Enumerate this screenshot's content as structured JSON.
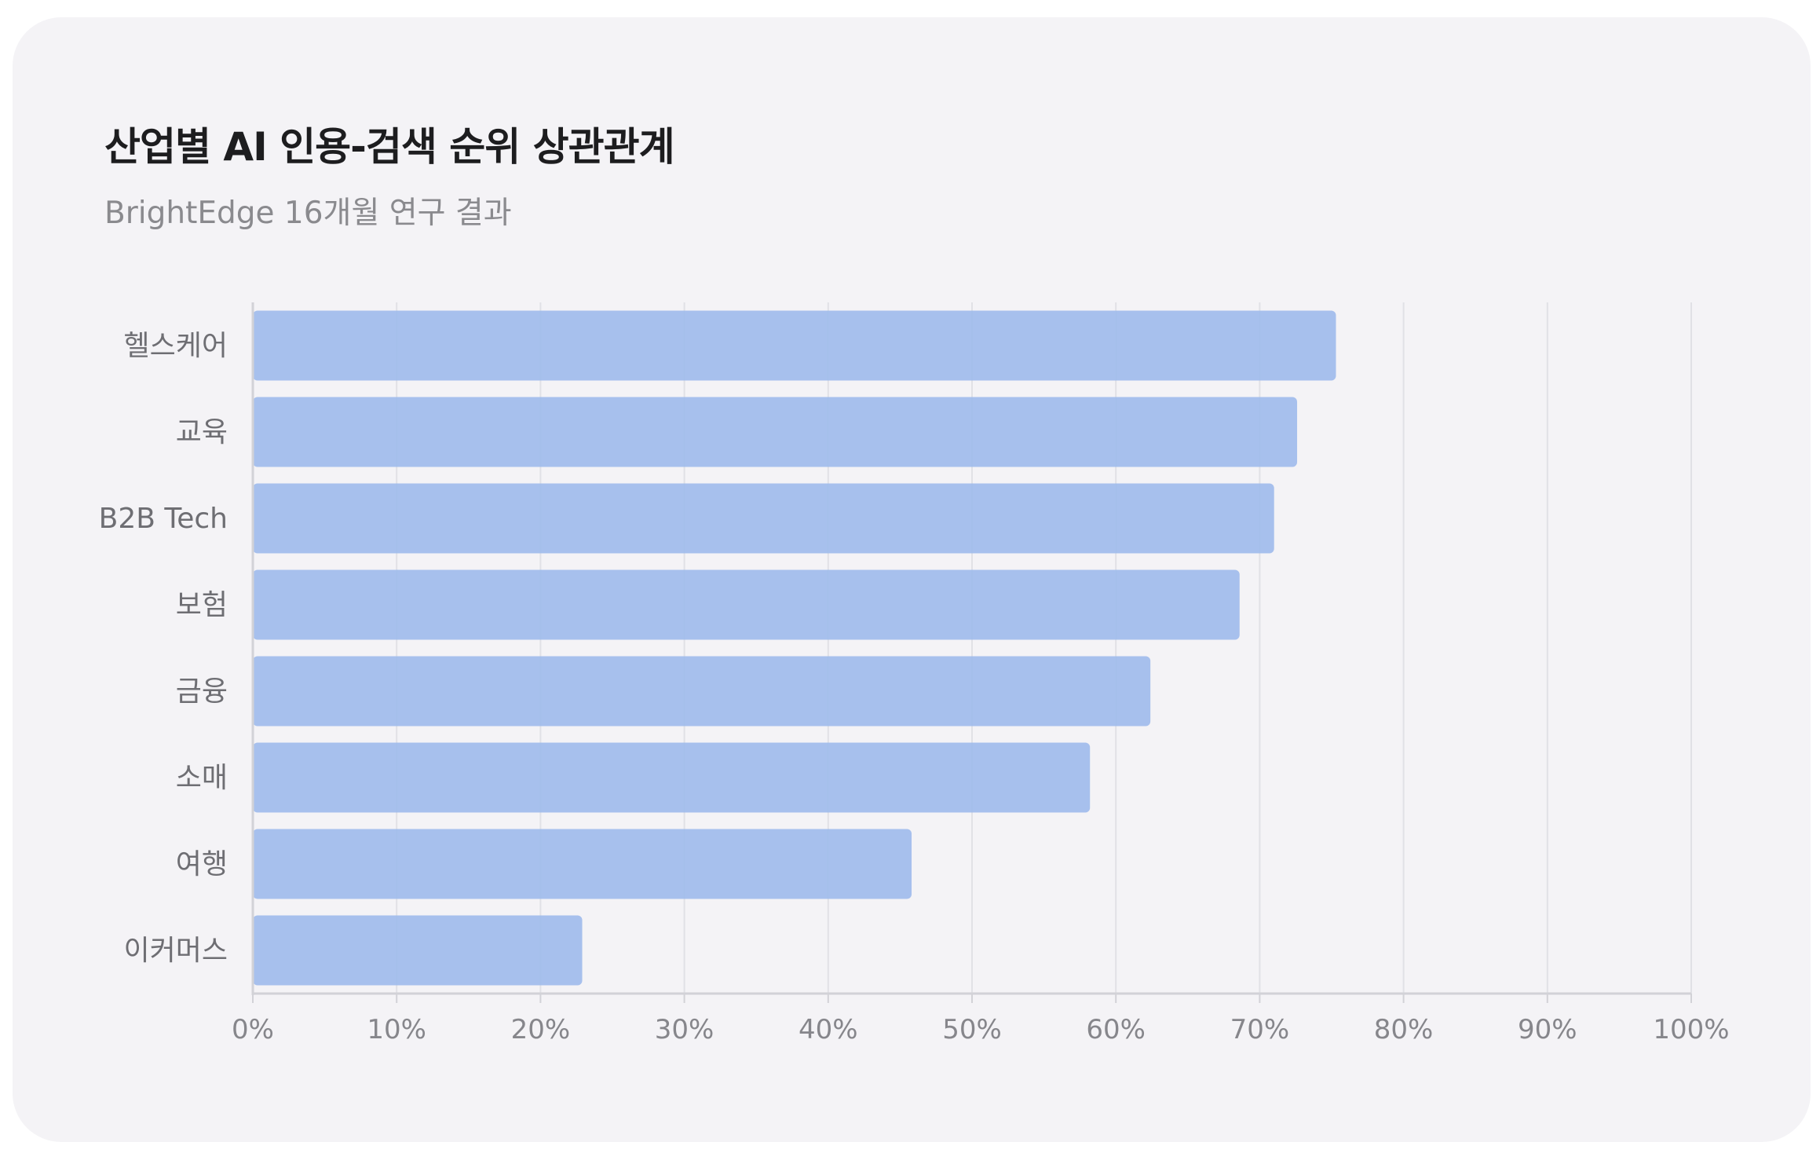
{
  "chart_data": {
    "type": "bar",
    "orientation": "horizontal",
    "title": "산업별 AI 인용-검색 순위 상관관계",
    "subtitle": "BrightEdge 16개월 연구 결과",
    "categories": [
      "헬스케어",
      "교육",
      "B2B Tech",
      "보험",
      "금융",
      "소매",
      "여행",
      "이커머스"
    ],
    "values": [
      75.3,
      72.6,
      71.0,
      68.6,
      62.4,
      58.2,
      45.8,
      22.9
    ],
    "unit": "%",
    "xlim": [
      0,
      100
    ],
    "x_ticks": [
      "0%",
      "10%",
      "20%",
      "30%",
      "40%",
      "50%",
      "60%",
      "70%",
      "80%",
      "90%",
      "100%"
    ],
    "grid": "vertical",
    "legend": "none",
    "bar_color": "#a0bcec"
  }
}
